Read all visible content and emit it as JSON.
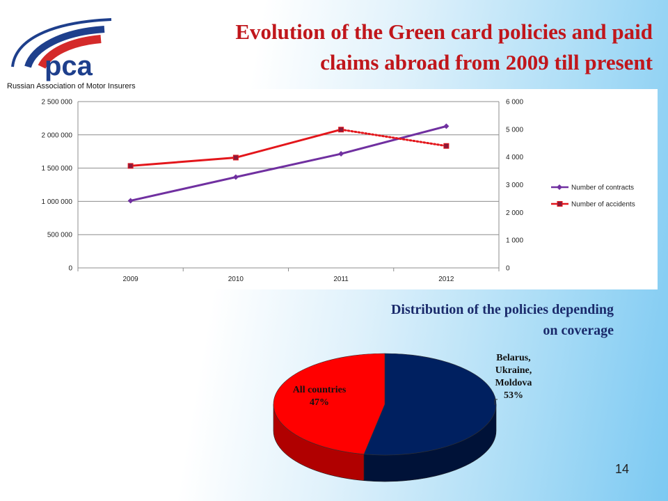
{
  "logo": {
    "text": "pca",
    "caption": "Russian Association of Motor Insurers"
  },
  "title": {
    "line1": "Evolution of the Green card policies and paid",
    "line2": "claims abroad from 2009 till present"
  },
  "pie_title": {
    "line1": "Distribution of the policies depending",
    "line2": "on coverage"
  },
  "page_number": "14",
  "colors": {
    "title": "#c0161b",
    "pie_title": "#1a2a6b",
    "contracts": "#7030a0",
    "accidents": "#e3161b",
    "pie_red": "#ff0000",
    "pie_navy": "#002060"
  },
  "chart_data": [
    {
      "type": "line",
      "categories": [
        "2009",
        "2010",
        "2011",
        "2012"
      ],
      "series": [
        {
          "name": "Number of contracts",
          "axis": "left",
          "values": [
            1010000,
            1365000,
            1715000,
            2130000
          ],
          "marker": "diamond"
        },
        {
          "name": "Number of accidents",
          "axis": "right",
          "values": [
            3680,
            3980,
            4990,
            4400
          ],
          "marker": "square",
          "last_segment_dotted": true
        }
      ],
      "y_left": {
        "ylim": [
          0,
          2500000
        ],
        "ticks": [
          "0",
          "500 000",
          "1 000 000",
          "1 500 000",
          "2 000 000",
          "2 500 000"
        ]
      },
      "y_right": {
        "ylim": [
          0,
          6000
        ],
        "ticks": [
          "0",
          "1 000",
          "2 000",
          "3 000",
          "4 000",
          "5 000",
          "6 000"
        ]
      },
      "grid": true,
      "legend_position": "right"
    },
    {
      "type": "pie",
      "slices": [
        {
          "label": "Belarus,\nUkraine,\nMoldova\n53%",
          "value": 53,
          "color": "#002060"
        },
        {
          "label": "All countries\n47%",
          "value": 47,
          "color": "#ff0000"
        }
      ],
      "style": "3d"
    }
  ]
}
